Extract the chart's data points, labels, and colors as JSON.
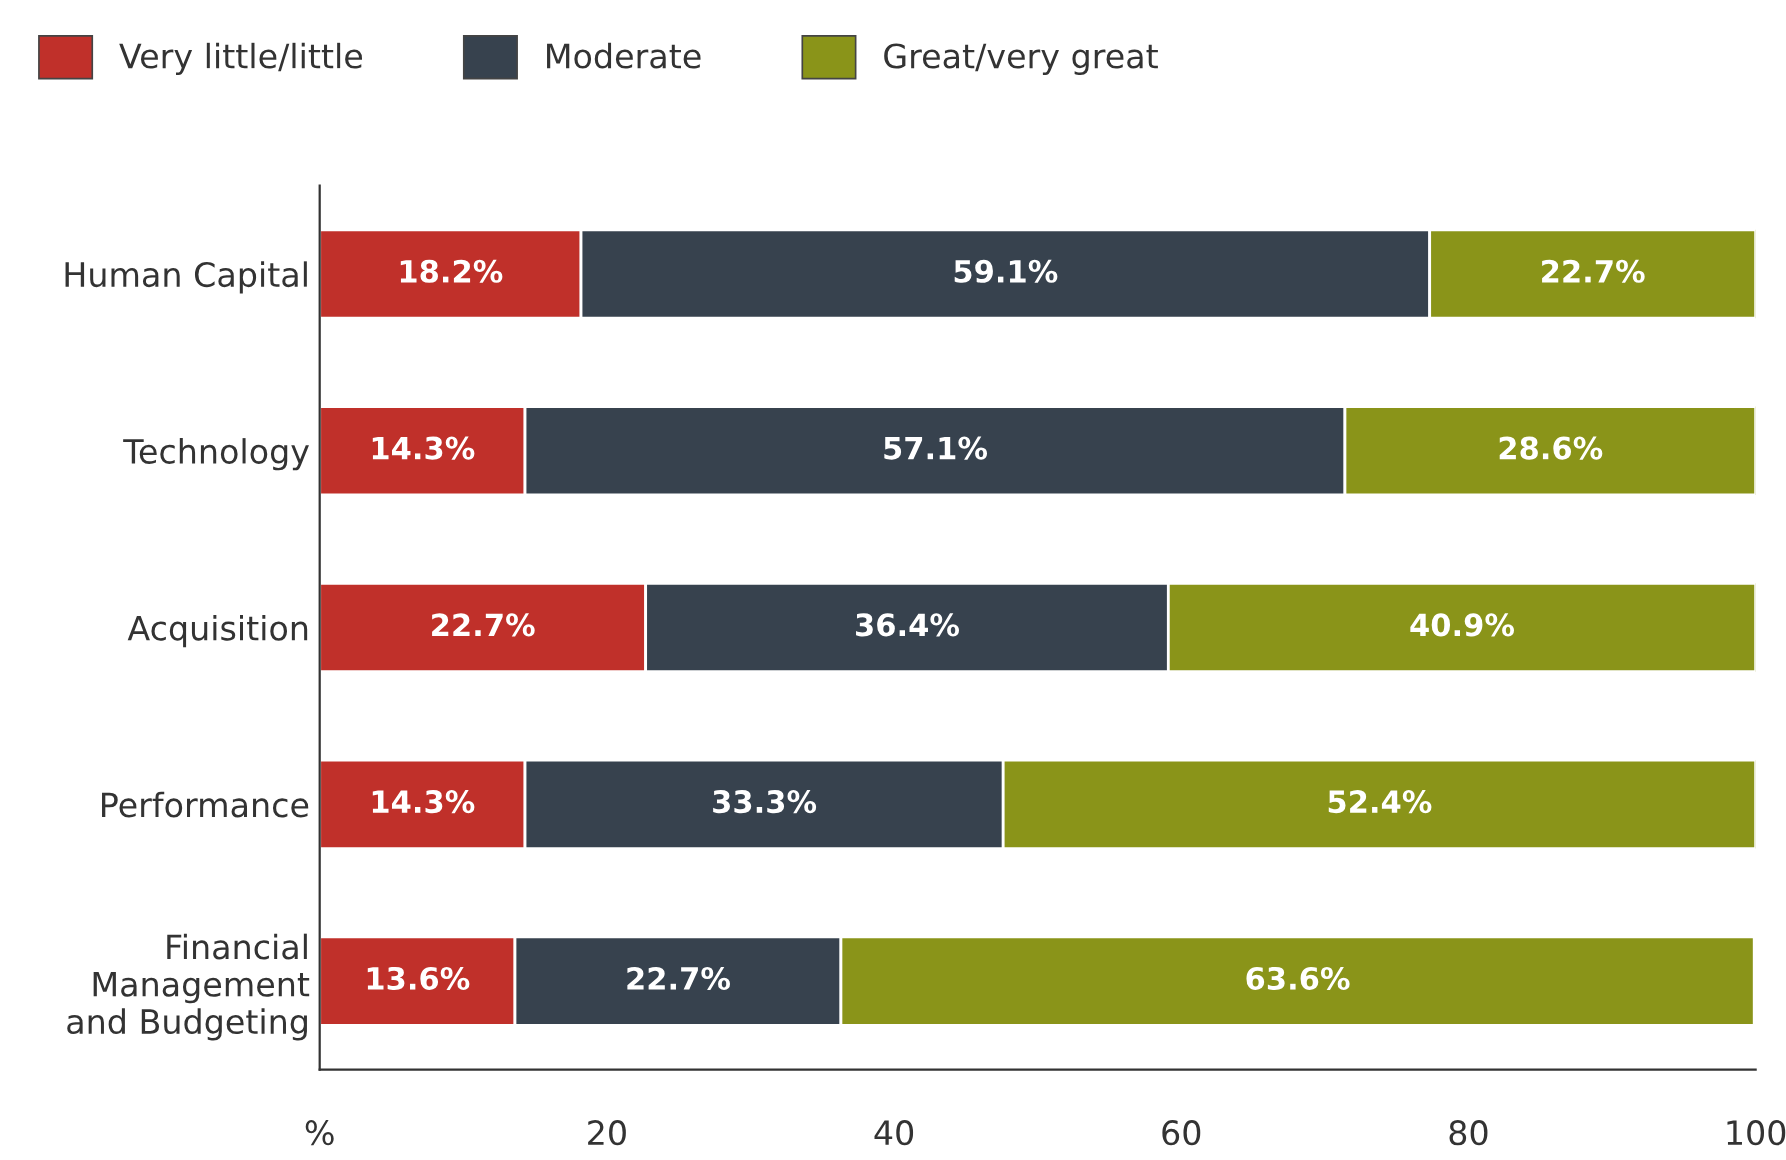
{
  "chart_data": {
    "type": "bar",
    "orientation": "horizontal",
    "stacked": true,
    "data_labels": false,
    "categories": [
      "Human Capital",
      "Technology",
      "Acquisition",
      "Performance",
      "Financial\nManagement\nand Budgeting"
    ],
    "series": [
      {
        "name": "Very little/little",
        "color": "#c0302a",
        "values": [
          18.2,
          14.3,
          22.7,
          14.3,
          13.6
        ],
        "value_labels": [
          "18.2%",
          "14.3%",
          "22.7%",
          "14.3%",
          "13.6%"
        ]
      },
      {
        "name": "Moderate",
        "color": "#37424e",
        "values": [
          59.1,
          57.1,
          36.4,
          33.3,
          22.7
        ],
        "value_labels": [
          "59.1%",
          "57.1%",
          "36.4%",
          "33.3%",
          "22.7%"
        ]
      },
      {
        "name": "Great/very great",
        "color": "#8a9419",
        "values": [
          22.7,
          28.6,
          40.9,
          52.4,
          63.6
        ],
        "value_labels": [
          "22.7%",
          "28.6%",
          "40.9%",
          "52.4%",
          "63.6%"
        ]
      }
    ],
    "xlim": [
      0,
      100
    ],
    "xticks": [
      {
        "value": 0,
        "label": "%"
      },
      20,
      40,
      60,
      80,
      100
    ],
    "grid": false,
    "legend": "top left"
  }
}
